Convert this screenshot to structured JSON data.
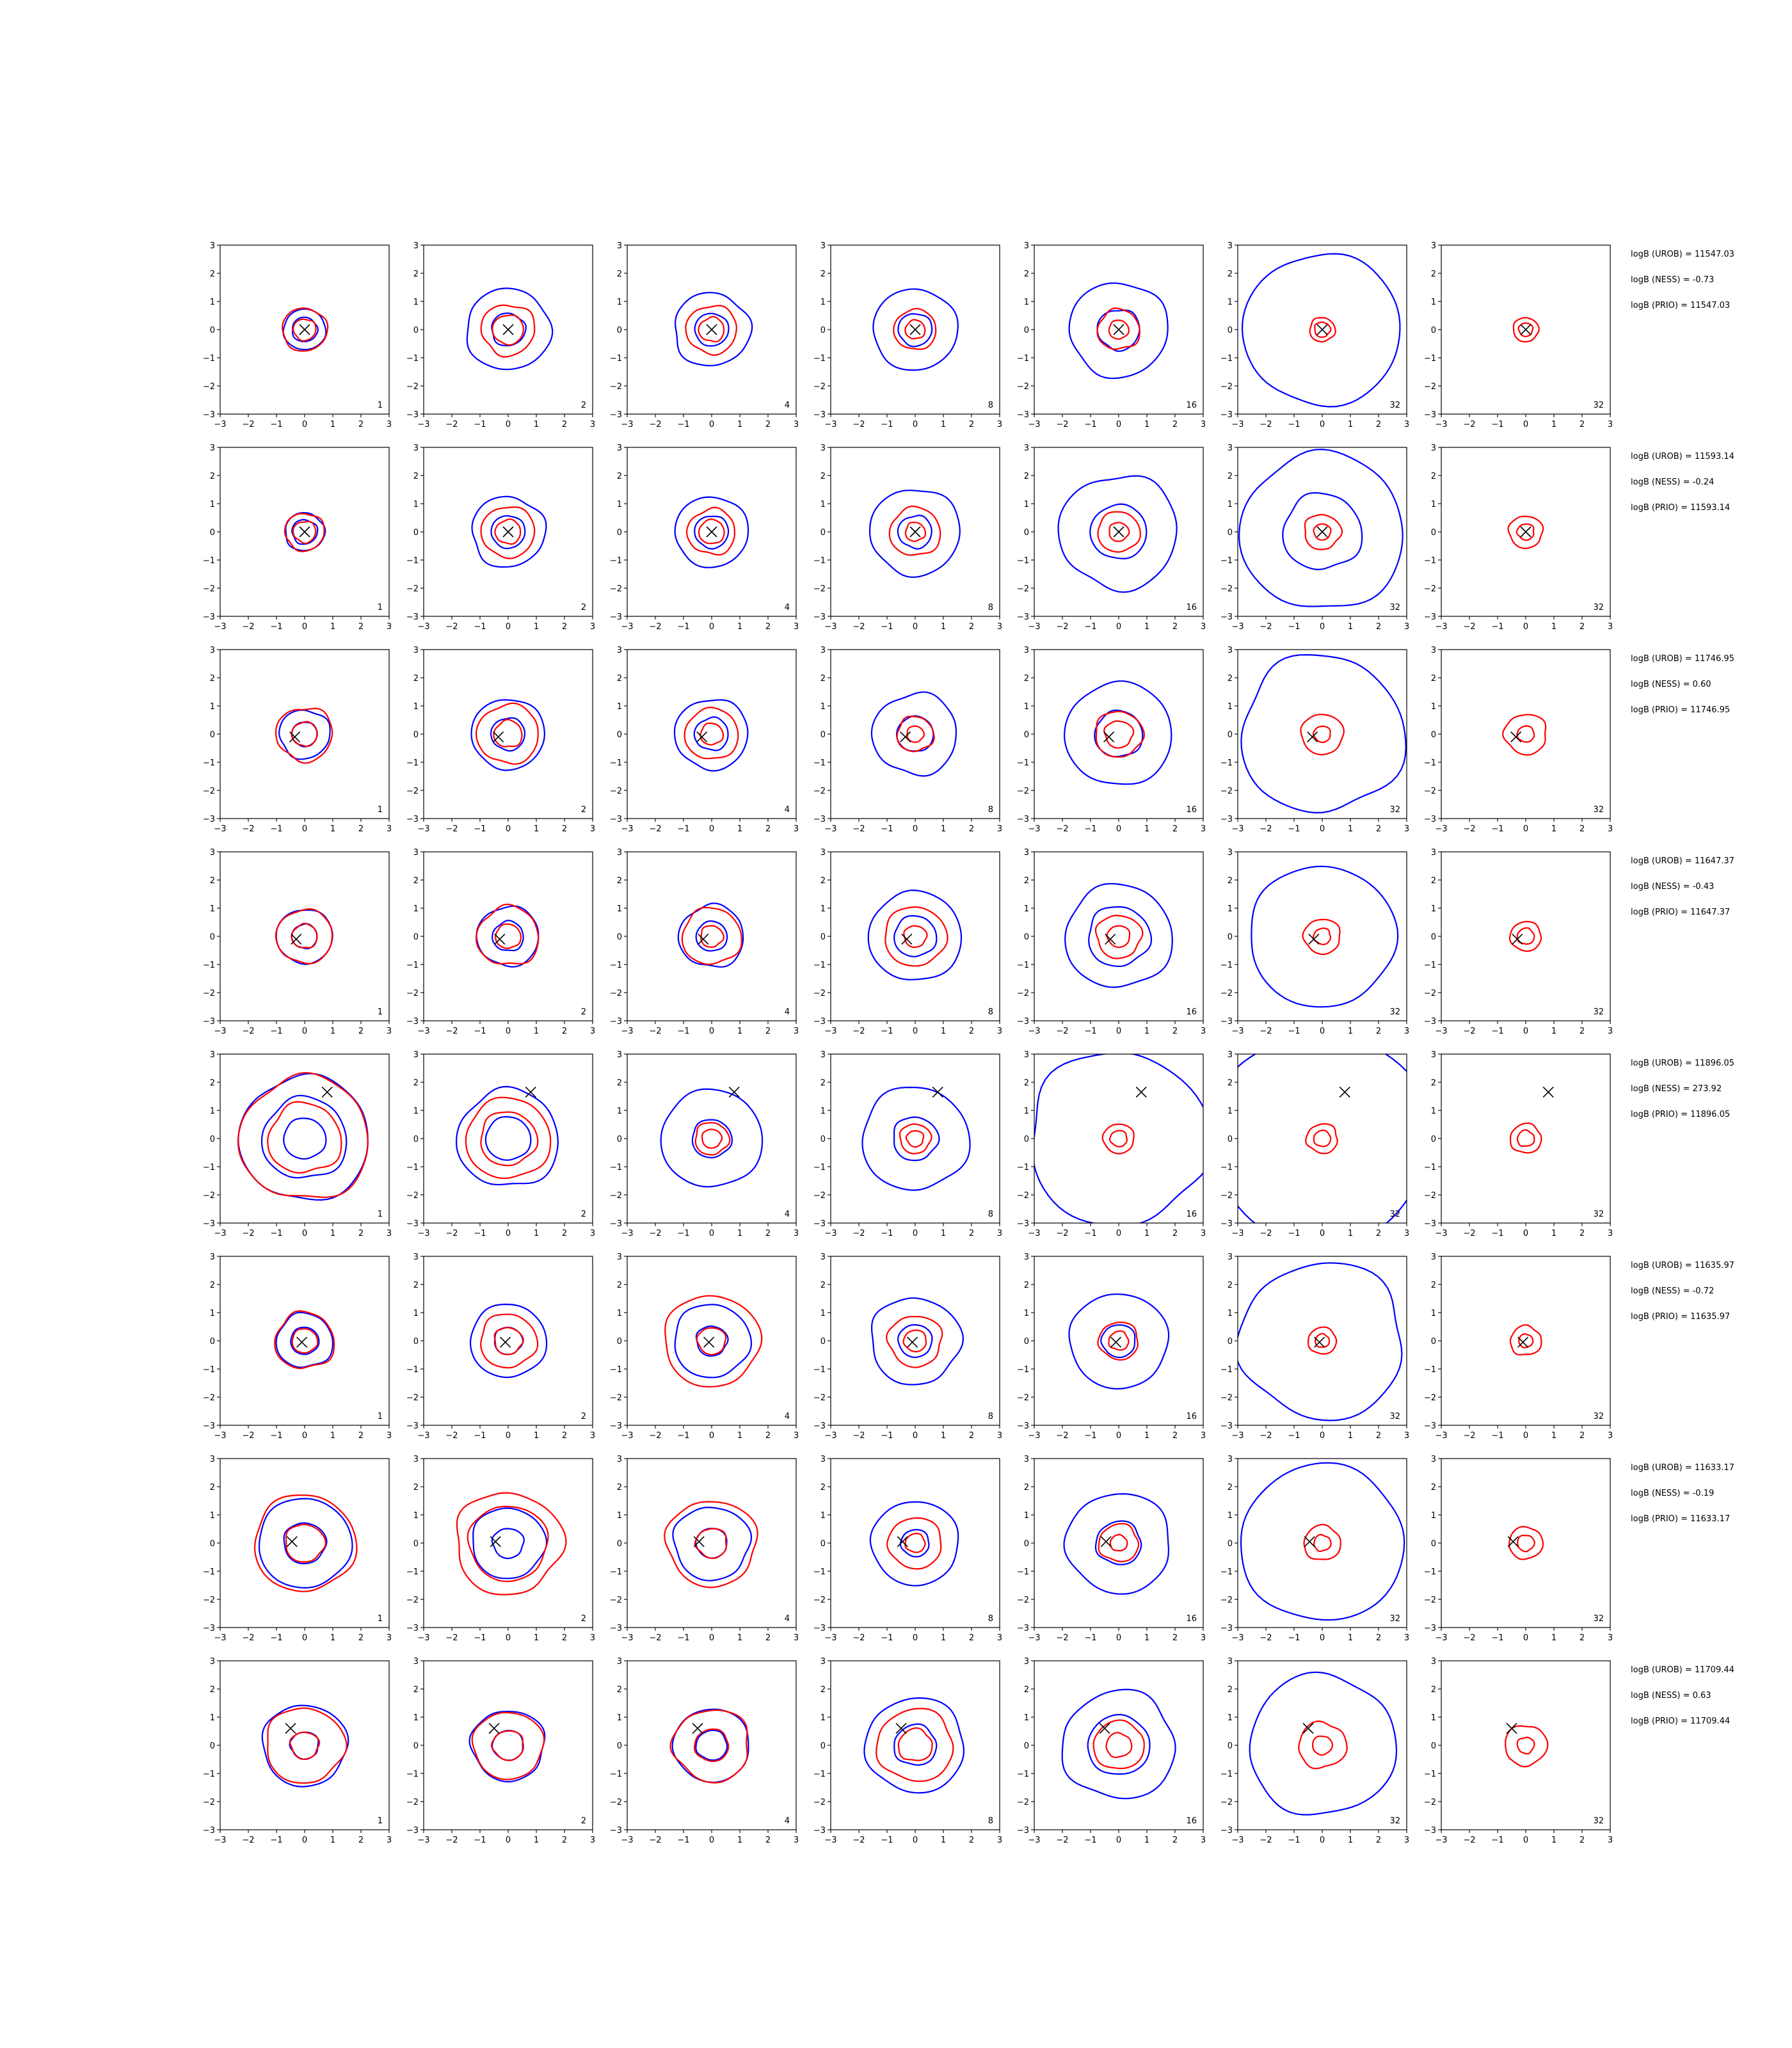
{
  "chart_data": {
    "type": "contour",
    "layout": {
      "rows": 8,
      "cols": 7
    },
    "xlim": [
      -3,
      3
    ],
    "ylim": [
      -3,
      3
    ],
    "xticks": [
      "−3",
      "−2",
      "−1",
      "0",
      "1",
      "2",
      "3"
    ],
    "yticks": [
      "−3",
      "−2",
      "−1",
      "0",
      "1",
      "2",
      "3"
    ],
    "panel_labels": [
      "1",
      "2",
      "4",
      "8",
      "16",
      "32",
      "32"
    ],
    "colors": {
      "blue_contour": "#0000ff",
      "red_contour": "#ff0000",
      "marker": "#000000"
    },
    "rows": [
      {
        "marker": [
          0,
          0
        ],
        "annotations": [
          "logB (UROB) = 11547.03",
          "logB (NESS) = -0.73",
          "logB (PRIO) = 11547.03"
        ],
        "panels": [
          {
            "blue": [
              0.75,
              0.45
            ],
            "red": [
              0.8,
              0.4
            ]
          },
          {
            "blue": [
              1.5,
              0.6
            ],
            "red": [
              0.95,
              0.55
            ]
          },
          {
            "blue": [
              1.35,
              0.6
            ],
            "red": [
              0.9,
              0.45
            ]
          },
          {
            "blue": [
              1.5,
              0.6
            ],
            "red": [
              0.75,
              0.35
            ]
          },
          {
            "blue": [
              1.75,
              0.75
            ],
            "red": [
              0.75,
              0.35
            ]
          },
          {
            "blue": [
              4.8,
              2.8
            ],
            "red": [
              0.45,
              0.28
            ]
          },
          {
            "blue": [],
            "red": [
              0.45,
              0.25
            ]
          }
        ]
      },
      {
        "marker": [
          0,
          0
        ],
        "annotations": [
          "logB (UROB) = 11593.14",
          "logB (NESS) = -0.24",
          "logB (PRIO) = 11593.14"
        ],
        "panels": [
          {
            "blue": [
              0.7,
              0.45
            ],
            "red": [
              0.7,
              0.4
            ]
          },
          {
            "blue": [
              1.3,
              0.6
            ],
            "red": [
              0.95,
              0.45
            ]
          },
          {
            "blue": [
              1.3,
              0.6
            ],
            "red": [
              0.85,
              0.45
            ]
          },
          {
            "blue": [
              1.6,
              0.6
            ],
            "red": [
              0.9,
              0.35
            ]
          },
          {
            "blue": [
              2.1,
              1.0
            ],
            "red": [
              0.75,
              0.35
            ]
          },
          {
            "blue": [
              5.0,
              2.9,
              1.4
            ],
            "red": [
              0.65,
              0.3
            ]
          },
          {
            "blue": [],
            "red": [
              0.6,
              0.3
            ]
          }
        ]
      },
      {
        "marker": [
          -0.35,
          -0.1
        ],
        "annotations": [
          "logB (UROB) = 11746.95",
          "logB (NESS) = 0.60",
          "logB (PRIO) = 11746.95"
        ],
        "panels": [
          {
            "blue": [
              0.9,
              0.45
            ],
            "red": [
              1.0,
              0.45
            ]
          },
          {
            "blue": [
              1.3,
              0.6
            ],
            "red": [
              1.1,
              0.5
            ]
          },
          {
            "blue": [
              1.3,
              0.6
            ],
            "red": [
              0.95,
              0.4
            ]
          },
          {
            "blue": [
              1.5,
              0.65
            ],
            "red": [
              0.65,
              0.3
            ]
          },
          {
            "blue": [
              1.9,
              0.85
            ],
            "red": [
              0.85,
              0.5
            ]
          },
          {
            "blue": [
              5.0,
              2.9
            ],
            "red": [
              0.75,
              0.3
            ]
          },
          {
            "blue": [],
            "red": [
              0.75,
              0.3
            ]
          }
        ]
      },
      {
        "marker": [
          -0.3,
          -0.1
        ],
        "annotations": [
          "logB (UROB) = 11647.37",
          "logB (NESS) = -0.43",
          "logB (PRIO) = 11647.37"
        ],
        "panels": [
          {
            "blue": [
              1.0,
              0.45
            ],
            "red": [
              1.0,
              0.45
            ]
          },
          {
            "blue": [
              1.1,
              0.55
            ],
            "red": [
              1.1,
              0.45
            ]
          },
          {
            "blue": [
              1.15,
              0.55
            ],
            "red": [
              1.05,
              0.4
            ]
          },
          {
            "blue": [
              1.65,
              0.75
            ],
            "red": [
              1.1,
              0.4
            ]
          },
          {
            "blue": [
              1.9,
              1.1
            ],
            "red": [
              0.8,
              0.4
            ]
          },
          {
            "blue": [
              5.0,
              2.6
            ],
            "red": [
              0.65,
              0.3
            ]
          },
          {
            "blue": [],
            "red": [
              0.55,
              0.3
            ]
          }
        ]
      },
      {
        "marker": [
          0.8,
          1.65
        ],
        "annotations": [
          "logB (UROB) = 11896.05",
          "logB (NESS) = 273.92",
          "logB (PRIO) = 11896.05"
        ],
        "panels": [
          {
            "blue": [
              2.3,
              1.5,
              0.75
            ],
            "red": [
              2.3,
              1.3
            ]
          },
          {
            "blue": [
              1.8,
              0.8
            ],
            "red": [
              1.5,
              1.0
            ]
          },
          {
            "blue": [
              1.8,
              0.7
            ],
            "red": [
              0.6,
              0.35
            ]
          },
          {
            "blue": [
              1.9,
              0.8
            ],
            "red": [
              0.55,
              0.3
            ]
          },
          {
            "blue": [
              3.2
            ],
            "red": [
              0.55,
              0.3
            ]
          },
          {
            "blue": [
              3.9
            ],
            "red": [
              0.55,
              0.3
            ]
          },
          {
            "blue": [],
            "red": [
              0.55,
              0.3
            ]
          }
        ]
      },
      {
        "marker": [
          -0.1,
          -0.05
        ],
        "annotations": [
          "logB (UROB) = 11635.97",
          "logB (NESS) = -0.72",
          "logB (PRIO) = 11635.97"
        ],
        "panels": [
          {
            "blue": [
              1.0,
              0.5
            ],
            "red": [
              1.05,
              0.45
            ]
          },
          {
            "blue": [
              1.35,
              0.5
            ],
            "red": [
              1.0,
              0.5
            ]
          },
          {
            "blue": [
              1.35,
              0.55
            ],
            "red": [
              1.7,
              0.5
            ]
          },
          {
            "blue": [
              1.6,
              0.6
            ],
            "red": [
              0.95,
              0.4
            ]
          },
          {
            "blue": [
              1.75,
              0.6
            ],
            "red": [
              0.7,
              0.35
            ]
          },
          {
            "blue": [
              4.8,
              2.9
            ],
            "red": [
              0.5,
              0.25
            ]
          },
          {
            "blue": [],
            "red": [
              0.55,
              0.25
            ]
          }
        ]
      },
      {
        "marker": [
          -0.45,
          0.05
        ],
        "annotations": [
          "logB (UROB) = 11633.17",
          "logB (NESS) = -0.19",
          "logB (PRIO) = 11633.17"
        ],
        "panels": [
          {
            "blue": [
              1.65,
              0.75
            ],
            "red": [
              1.8,
              0.7
            ]
          },
          {
            "blue": [
              1.3,
              0.55
            ],
            "red": [
              1.9,
              1.4
            ]
          },
          {
            "blue": [
              1.35,
              0.55
            ],
            "red": [
              1.6,
              0.55
            ]
          },
          {
            "blue": [
              1.55,
              0.5
            ],
            "red": [
              0.95,
              0.35
            ]
          },
          {
            "blue": [
              1.85,
              0.8
            ],
            "red": [
              0.7,
              0.3
            ]
          },
          {
            "blue": [
              5.0,
              2.9
            ],
            "red": [
              0.65,
              0.3
            ]
          },
          {
            "blue": [],
            "red": [
              0.6,
              0.3
            ]
          }
        ]
      },
      {
        "marker": [
          -0.5,
          0.6
        ],
        "annotations": [
          "logB (UROB) = 11709.44",
          "logB (NESS) = 0.63",
          "logB (PRIO) = 11709.44"
        ],
        "panels": [
          {
            "blue": [
              1.5,
              0.5
            ],
            "red": [
              1.4,
              0.5
            ]
          },
          {
            "blue": [
              1.3,
              0.55
            ],
            "red": [
              1.25,
              0.55
            ]
          },
          {
            "blue": [
              1.35,
              0.55
            ],
            "red": [
              1.35,
              0.6
            ]
          },
          {
            "blue": [
              1.75,
              0.75
            ],
            "red": [
              1.35,
              0.6
            ]
          },
          {
            "blue": [
              2.0,
              1.1
            ],
            "red": [
              0.9,
              0.45
            ]
          },
          {
            "blue": [
              4.8,
              2.6
            ],
            "red": [
              0.85,
              0.35
            ]
          },
          {
            "blue": [],
            "red": [
              0.75,
              0.3
            ]
          }
        ]
      }
    ]
  }
}
